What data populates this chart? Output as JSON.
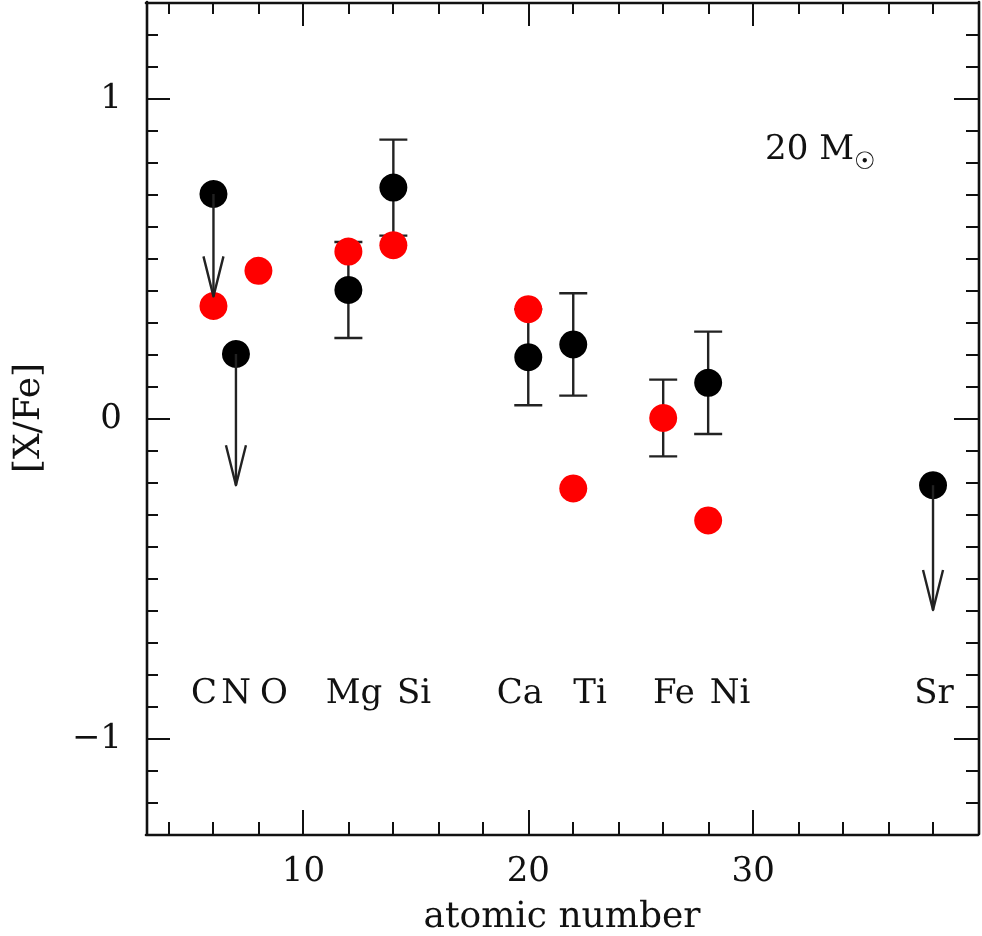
{
  "chart_data": {
    "type": "scatter",
    "xlabel": "atomic number",
    "ylabel": "[X/Fe]",
    "xlim": [
      3,
      40
    ],
    "ylim": [
      -1.3,
      1.3
    ],
    "xticks": [
      {
        "value": 4,
        "label": null
      },
      {
        "value": 6,
        "label": null
      },
      {
        "value": 8,
        "label": null
      },
      10,
      {
        "value": 12,
        "label": null
      },
      {
        "value": 14,
        "label": null
      },
      {
        "value": 16,
        "label": null
      },
      {
        "value": 18,
        "label": null
      },
      20,
      {
        "value": 22,
        "label": null
      },
      {
        "value": 24,
        "label": null
      },
      {
        "value": 26,
        "label": null
      },
      {
        "value": 28,
        "label": null
      },
      30,
      {
        "value": 32,
        "label": null
      },
      {
        "value": 34,
        "label": null
      },
      {
        "value": 36,
        "label": null
      },
      {
        "value": 38,
        "label": null
      }
    ],
    "yticks": [
      {
        "value": -1.2,
        "label": null
      },
      {
        "value": -1.1,
        "label": null
      },
      {
        "value": -1,
        "label": "−1"
      },
      {
        "value": -0.9,
        "label": null
      },
      {
        "value": -0.8,
        "label": null
      },
      {
        "value": -0.7,
        "label": null
      },
      {
        "value": -0.6,
        "label": null
      },
      {
        "value": -0.5,
        "label": null
      },
      {
        "value": -0.4,
        "label": null
      },
      {
        "value": -0.3,
        "label": null
      },
      {
        "value": -0.2,
        "label": null
      },
      {
        "value": -0.1,
        "label": null
      },
      0,
      {
        "value": 0.1,
        "label": null
      },
      {
        "value": 0.2,
        "label": null
      },
      {
        "value": 0.3,
        "label": null
      },
      {
        "value": 0.4,
        "label": null
      },
      {
        "value": 0.5,
        "label": null
      },
      {
        "value": 0.6,
        "label": null
      },
      {
        "value": 0.7,
        "label": null
      },
      {
        "value": 0.8,
        "label": null
      },
      {
        "value": 0.9,
        "label": null
      },
      1,
      {
        "value": 1.1,
        "label": null
      },
      {
        "value": 1.2,
        "label": null
      }
    ],
    "grid": false,
    "marker": "circle",
    "series": [
      {
        "color": "#000000",
        "x": [
          6,
          7,
          12,
          14,
          20,
          22,
          28,
          38
        ],
        "values": [
          0.7,
          0.2,
          0.4,
          0.72,
          0.19,
          0.23,
          0.11,
          -0.21
        ],
        "errors": [
          [
            0.38,
            0.7
          ],
          [
            -0.21,
            0.2
          ],
          0.15,
          0.15,
          0.15,
          0.16,
          0.16,
          [
            -0.6,
            -0.21
          ]
        ]
      },
      {
        "color": "#ff0000",
        "x": [
          6,
          8,
          12,
          14,
          20,
          22,
          26,
          28
        ],
        "values": [
          0.35,
          0.46,
          0.52,
          0.54,
          0.34,
          -0.22,
          0.0,
          -0.32
        ],
        "errors": [
          null,
          null,
          null,
          null,
          null,
          null,
          0.12,
          null
        ]
      }
    ],
    "annotations": [
      "C",
      "N",
      "O",
      "Mg",
      "Si",
      "Ca",
      "Ti",
      "Fe",
      "Ni",
      "Sr",
      "20 M$_{☉}$"
    ]
  }
}
